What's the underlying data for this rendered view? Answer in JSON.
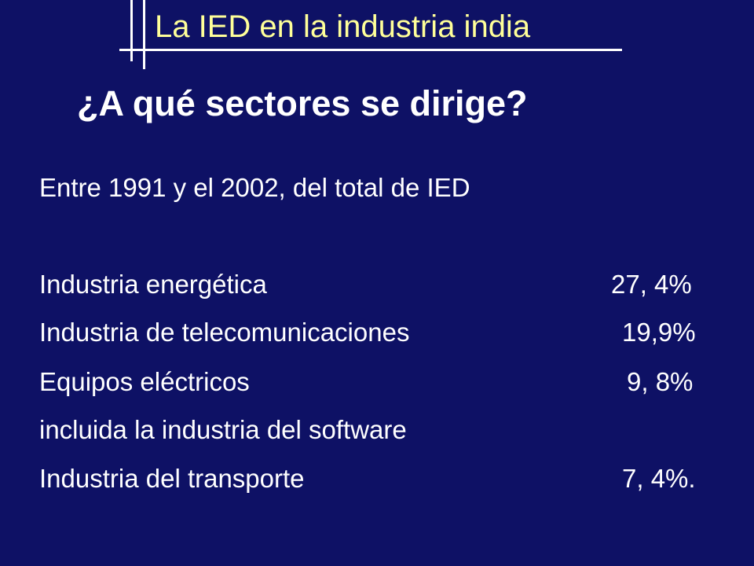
{
  "slide": {
    "title": "La IED en la industria india",
    "heading": "¿A qué sectores se dirige?",
    "intro": "Entre 1991 y el 2002, del total de IED",
    "rows": [
      {
        "label": "Industria energética",
        "value": "27, 4%"
      },
      {
        "label": "Industria de telecomunicaciones",
        "value": "19,9%"
      },
      {
        "label": "Equipos eléctricos",
        "value": "9, 8%"
      },
      {
        "label": "incluida la industria del software",
        "value": ""
      },
      {
        "label": "Industria del transporte",
        "value": "7, 4%."
      }
    ]
  },
  "colors": {
    "background": "#0e1165",
    "title_text": "#ffff99",
    "body_text": "#ffffff",
    "decoration_lines": "#ffffff"
  }
}
